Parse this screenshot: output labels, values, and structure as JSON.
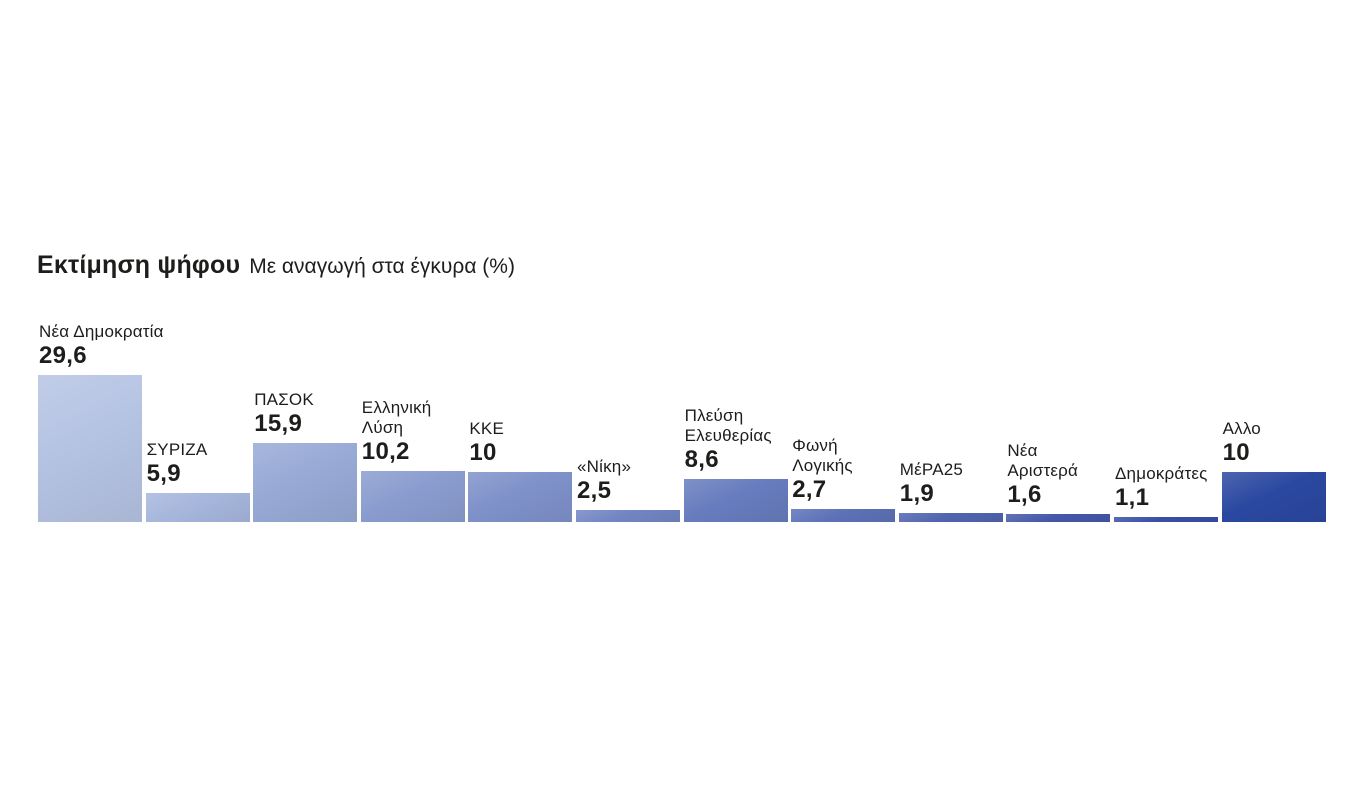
{
  "page": {
    "background_color": "#ffffff",
    "text_color": "#1d1d1b"
  },
  "header": {
    "title": "Εκτίμηση ψήφου",
    "subtitle": "Με αναγωγή στα έγκυρα (%)"
  },
  "chart_data": {
    "type": "bar",
    "title": "Εκτίμηση ψήφου",
    "subtitle": "Με αναγωγή στα έγκυρα (%)",
    "unit": "percent of valid votes",
    "orientation": "vertical",
    "ylim": [
      0,
      30
    ],
    "grid": false,
    "legend": "none",
    "decimal_separator": ",",
    "categories": [
      "Νέα Δημοκρατία",
      "ΣΥΡΙΖΑ",
      "ΠΑΣΟΚ",
      "Ελληνική Λύση",
      "ΚΚΕ",
      "«Νίκη»",
      "Πλεύση Ελευθερίας",
      "Φωνή Λογικής",
      "ΜέΡΑ25",
      "Νέα Αριστερά",
      "Δημοκράτες",
      "Αλλο"
    ],
    "values": [
      29.6,
      5.9,
      15.9,
      10.2,
      10,
      2.5,
      8.6,
      2.7,
      1.9,
      1.6,
      1.1,
      10
    ],
    "bars": [
      {
        "slug": "nea-dimokratia",
        "label_lines": [
          "Νέα Δημοκρατία"
        ],
        "value": 29.6,
        "display_value": "29,6",
        "color": "#b5c3e3"
      },
      {
        "slug": "syriza",
        "label_lines": [
          "ΣΥΡΙΖΑ"
        ],
        "value": 5.9,
        "display_value": "5,9",
        "color": "#a6b6dc"
      },
      {
        "slug": "pasok",
        "label_lines": [
          "ΠΑΣΟΚ"
        ],
        "value": 15.9,
        "display_value": "15,9",
        "color": "#97a9d5"
      },
      {
        "slug": "elliniki-lysi",
        "label_lines": [
          "Ελληνική",
          "Λύση"
        ],
        "value": 10.2,
        "display_value": "10,2",
        "color": "#8a9ccf"
      },
      {
        "slug": "kke",
        "label_lines": [
          "ΚΚΕ"
        ],
        "value": 10,
        "display_value": "10",
        "color": "#7e91c9"
      },
      {
        "slug": "niki",
        "label_lines": [
          "«Νίκη»"
        ],
        "value": 2.5,
        "display_value": "2,5",
        "color": "#7285c3"
      },
      {
        "slug": "plefsi-eleftherias",
        "label_lines": [
          "Πλεύση",
          "Ελευθερίας"
        ],
        "value": 8.6,
        "display_value": "8,6",
        "color": "#677cbe"
      },
      {
        "slug": "foni-logikis",
        "label_lines": [
          "Φωνή",
          "Λογικής"
        ],
        "value": 2.7,
        "display_value": "2,7",
        "color": "#5c71b7"
      },
      {
        "slug": "mera25",
        "label_lines": [
          "ΜέΡΑ25"
        ],
        "value": 1.9,
        "display_value": "1,9",
        "color": "#5064af"
      },
      {
        "slug": "nea-aristera",
        "label_lines": [
          "Νέα",
          "Αριστερά"
        ],
        "value": 1.6,
        "display_value": "1,6",
        "color": "#4558a9"
      },
      {
        "slug": "dimokrates",
        "label_lines": [
          "Δημοκράτες"
        ],
        "value": 1.1,
        "display_value": "1,1",
        "color": "#3a4fa4"
      },
      {
        "slug": "allo",
        "label_lines": [
          "Αλλο"
        ],
        "value": 10,
        "display_value": "10",
        "color": "#2b48a1"
      }
    ]
  }
}
